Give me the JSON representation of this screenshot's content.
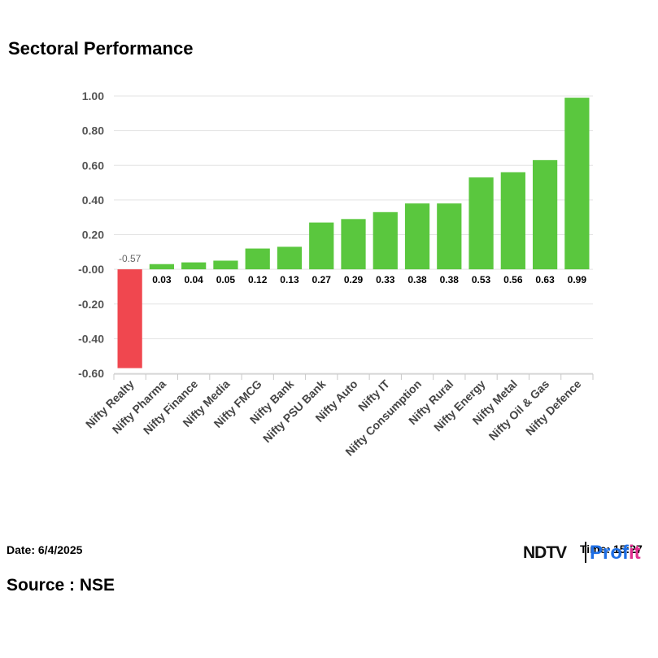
{
  "header": {
    "title": "Sectoral Performance"
  },
  "footer": {
    "date": "Date: 6/4/2025",
    "time": "Time: 15:27",
    "source": "Source : NSE",
    "logo_ndtv": "NDTV",
    "logo_profit_a": "Prof",
    "logo_profit_b": "it"
  },
  "colors": {
    "positive": "#5ac73e",
    "negative": "#f0474f",
    "grid": "#e3e3e3",
    "axis": "#c8c8c8"
  },
  "chart_data": {
    "type": "bar",
    "title": "Sectoral Performance",
    "xlabel": "",
    "ylabel": "",
    "ylim": [
      -0.6,
      1.0
    ],
    "yticks": [
      1.0,
      0.8,
      0.6,
      0.4,
      0.2,
      0.0,
      -0.2,
      -0.4,
      -0.6
    ],
    "ytick_labels": [
      "1.00",
      "0.80",
      "0.60",
      "0.40",
      "0.20",
      "-0.00",
      "-0.20",
      "-0.40",
      "-0.60"
    ],
    "grid": true,
    "categories": [
      "Nifty Realty",
      "Nifty Pharma",
      "Nifty Finance",
      "Nifty Media",
      "Nifty FMCG",
      "Nifty Bank",
      "Nifty PSU Bank",
      "Nifty Auto",
      "Nifty IT",
      "Nifty Consumption",
      "Nifty Rural",
      "Nifty Energy",
      "Nifty Metal",
      "Nifty Oil & Gas",
      "Nifty Defence"
    ],
    "values": [
      -0.57,
      0.03,
      0.04,
      0.05,
      0.12,
      0.13,
      0.27,
      0.29,
      0.33,
      0.38,
      0.38,
      0.53,
      0.56,
      0.63,
      0.99
    ],
    "data_labels": [
      "-0.57",
      "0.03",
      "0.04",
      "0.05",
      "0.12",
      "0.13",
      "0.27",
      "0.29",
      "0.33",
      "0.38",
      "0.38",
      "0.53",
      "0.56",
      "0.63",
      "0.99"
    ]
  }
}
